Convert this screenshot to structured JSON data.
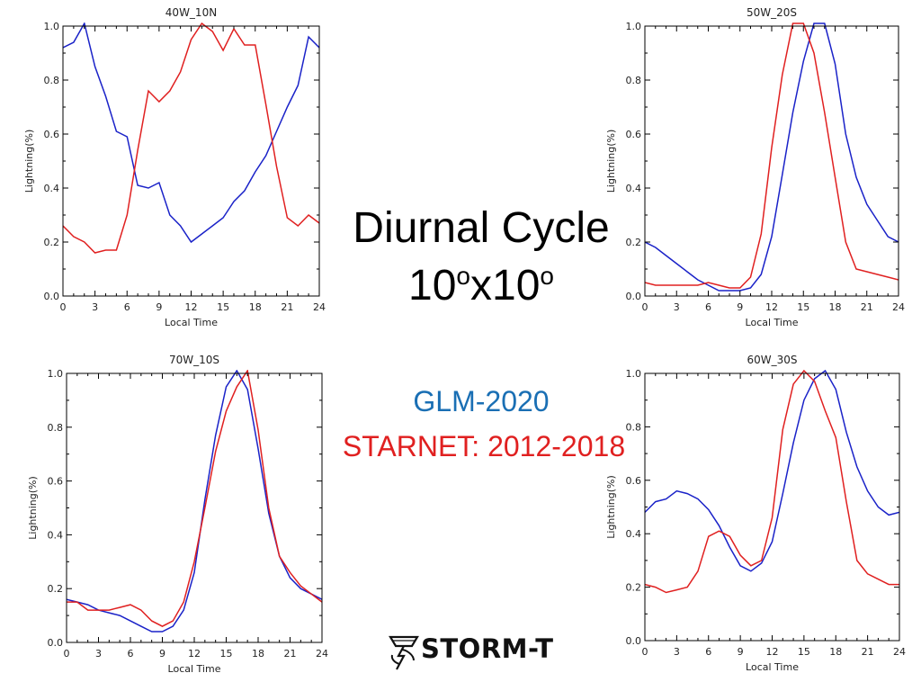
{
  "heading": {
    "line1": "Diurnal Cycle",
    "line2_num1": "10",
    "line2_sup1": "o",
    "line2_x": "x",
    "line2_num2": "10",
    "line2_sup2": "o"
  },
  "legend": {
    "glm": "GLM-2020",
    "starnet": "STARNET: 2012-2018",
    "glm_color": "#1a22c8",
    "starnet_color": "#e02020"
  },
  "logo": {
    "text": "STORM-T"
  },
  "chart_data": [
    {
      "type": "line",
      "title": "40W_10N",
      "xlabel": "Local Time",
      "ylabel": "Lightning(%)",
      "xlim": [
        0,
        24
      ],
      "ylim": [
        0,
        1
      ],
      "xticks": [
        "0",
        "3",
        "6",
        "9",
        "12",
        "15",
        "18",
        "21",
        "24"
      ],
      "yticks": [
        "0.0",
        "0.2",
        "0.4",
        "0.6",
        "0.8",
        "1.0"
      ],
      "x": [
        0,
        1,
        2,
        3,
        4,
        5,
        6,
        7,
        8,
        9,
        10,
        11,
        12,
        13,
        14,
        15,
        16,
        17,
        18,
        19,
        20,
        21,
        22,
        23,
        24
      ],
      "series": [
        {
          "color": "#1a22c8",
          "values": [
            0.92,
            0.94,
            1.01,
            0.85,
            0.74,
            0.61,
            0.59,
            0.41,
            0.4,
            0.42,
            0.3,
            0.26,
            0.2,
            0.23,
            0.26,
            0.29,
            0.35,
            0.39,
            0.46,
            0.52,
            0.61,
            0.7,
            0.78,
            0.96,
            0.92
          ]
        },
        {
          "color": "#e02020",
          "values": [
            0.26,
            0.22,
            0.2,
            0.16,
            0.17,
            0.17,
            0.3,
            0.54,
            0.76,
            0.72,
            0.76,
            0.83,
            0.95,
            1.01,
            0.98,
            0.91,
            0.99,
            0.93,
            0.93,
            0.71,
            0.48,
            0.29,
            0.26,
            0.3,
            0.27
          ]
        }
      ]
    },
    {
      "type": "line",
      "title": "50W_20S",
      "xlabel": "Local Time",
      "ylabel": "Lightning(%)",
      "xlim": [
        0,
        24
      ],
      "ylim": [
        0,
        1
      ],
      "xticks": [
        "0",
        "3",
        "6",
        "9",
        "12",
        "15",
        "18",
        "21",
        "24"
      ],
      "yticks": [
        "0.0",
        "0.2",
        "0.4",
        "0.6",
        "0.8",
        "1.0"
      ],
      "x": [
        0,
        1,
        2,
        3,
        4,
        5,
        6,
        7,
        8,
        9,
        10,
        11,
        12,
        13,
        14,
        15,
        16,
        17,
        18,
        19,
        20,
        21,
        22,
        23,
        24
      ],
      "series": [
        {
          "color": "#1a22c8",
          "values": [
            0.2,
            0.18,
            0.15,
            0.12,
            0.09,
            0.06,
            0.04,
            0.02,
            0.02,
            0.02,
            0.03,
            0.08,
            0.22,
            0.45,
            0.68,
            0.87,
            1.01,
            1.01,
            0.86,
            0.6,
            0.44,
            0.34,
            0.28,
            0.22,
            0.2
          ]
        },
        {
          "color": "#e02020",
          "values": [
            0.05,
            0.04,
            0.04,
            0.04,
            0.04,
            0.04,
            0.05,
            0.04,
            0.03,
            0.03,
            0.07,
            0.23,
            0.55,
            0.82,
            1.01,
            1.01,
            0.9,
            0.68,
            0.44,
            0.2,
            0.1,
            0.09,
            0.08,
            0.07,
            0.06
          ]
        }
      ]
    },
    {
      "type": "line",
      "title": "70W_10S",
      "xlabel": "Local Time",
      "ylabel": "Lightning(%)",
      "xlim": [
        0,
        24
      ],
      "ylim": [
        0,
        1
      ],
      "xticks": [
        "0",
        "3",
        "6",
        "9",
        "12",
        "15",
        "18",
        "21",
        "24"
      ],
      "yticks": [
        "0.0",
        "0.2",
        "0.4",
        "0.6",
        "0.8",
        "1.0"
      ],
      "x": [
        0,
        1,
        2,
        3,
        4,
        5,
        6,
        7,
        8,
        9,
        10,
        11,
        12,
        13,
        14,
        15,
        16,
        17,
        18,
        19,
        20,
        21,
        22,
        23,
        24
      ],
      "series": [
        {
          "color": "#1a22c8",
          "values": [
            0.16,
            0.15,
            0.14,
            0.12,
            0.11,
            0.1,
            0.08,
            0.06,
            0.04,
            0.04,
            0.06,
            0.12,
            0.26,
            0.53,
            0.77,
            0.95,
            1.01,
            0.94,
            0.72,
            0.48,
            0.32,
            0.24,
            0.2,
            0.18,
            0.16
          ]
        },
        {
          "color": "#e02020",
          "values": [
            0.15,
            0.15,
            0.12,
            0.12,
            0.12,
            0.13,
            0.14,
            0.12,
            0.08,
            0.06,
            0.08,
            0.15,
            0.3,
            0.5,
            0.71,
            0.86,
            0.95,
            1.01,
            0.79,
            0.5,
            0.32,
            0.26,
            0.21,
            0.18,
            0.15
          ]
        }
      ]
    },
    {
      "type": "line",
      "title": "60W_30S",
      "xlabel": "Local Time",
      "ylabel": "Lightning(%)",
      "xlim": [
        0,
        24
      ],
      "ylim": [
        0,
        1
      ],
      "xticks": [
        "0",
        "3",
        "6",
        "9",
        "12",
        "15",
        "18",
        "21",
        "24"
      ],
      "yticks": [
        "0.0",
        "0.2",
        "0.4",
        "0.6",
        "0.8",
        "1.0"
      ],
      "x": [
        0,
        1,
        2,
        3,
        4,
        5,
        6,
        7,
        8,
        9,
        10,
        11,
        12,
        13,
        14,
        15,
        16,
        17,
        18,
        19,
        20,
        21,
        22,
        23,
        24
      ],
      "series": [
        {
          "color": "#1a22c8",
          "values": [
            0.48,
            0.52,
            0.53,
            0.56,
            0.55,
            0.53,
            0.49,
            0.43,
            0.35,
            0.28,
            0.26,
            0.29,
            0.37,
            0.55,
            0.74,
            0.9,
            0.98,
            1.01,
            0.94,
            0.78,
            0.65,
            0.56,
            0.5,
            0.47,
            0.48
          ]
        },
        {
          "color": "#e02020",
          "values": [
            0.21,
            0.2,
            0.18,
            0.19,
            0.2,
            0.26,
            0.39,
            0.41,
            0.39,
            0.32,
            0.28,
            0.3,
            0.46,
            0.79,
            0.96,
            1.01,
            0.97,
            0.86,
            0.76,
            0.52,
            0.3,
            0.25,
            0.23,
            0.21,
            0.21
          ]
        }
      ]
    }
  ]
}
